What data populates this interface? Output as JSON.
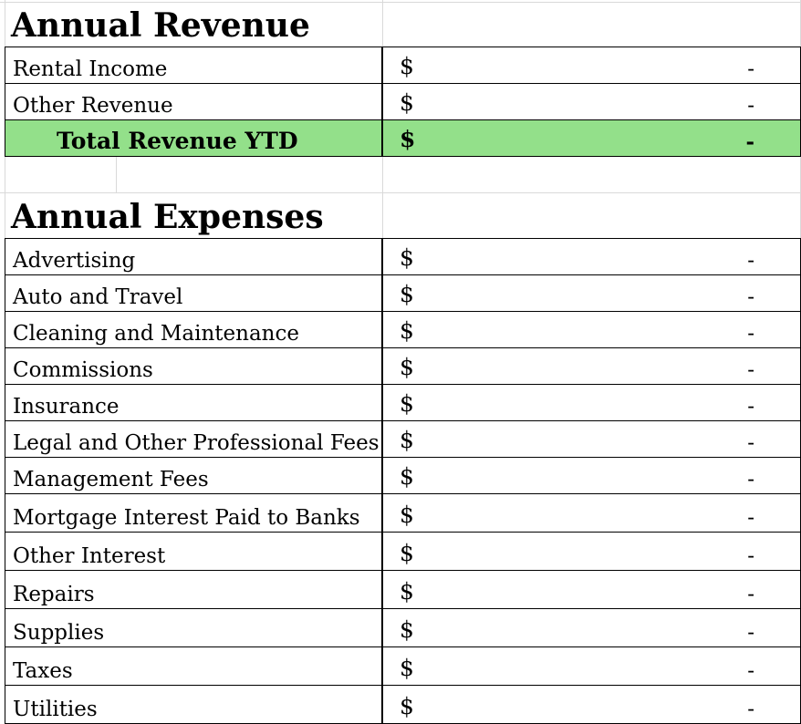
{
  "revenue": {
    "heading": "Annual Revenue",
    "rows": [
      {
        "label": "Rental Income",
        "currency": "$",
        "value": "-"
      },
      {
        "label": "Other Revenue",
        "currency": "$",
        "value": "-"
      }
    ],
    "total": {
      "label": "Total Revenue YTD",
      "currency": "$",
      "value": "-",
      "highlight_color": "#93e08a"
    }
  },
  "expenses": {
    "heading": "Annual Expenses",
    "rows": [
      {
        "label": "Advertising",
        "currency": "$",
        "value": "-"
      },
      {
        "label": "Auto and Travel",
        "currency": "$",
        "value": "-"
      },
      {
        "label": "Cleaning and Maintenance",
        "currency": "$",
        "value": "-"
      },
      {
        "label": "Commissions",
        "currency": "$",
        "value": "-"
      },
      {
        "label": "Insurance",
        "currency": "$",
        "value": "-"
      },
      {
        "label": "Legal and Other Professional Fees",
        "currency": "$",
        "value": "-"
      },
      {
        "label": "Management Fees",
        "currency": "$",
        "value": "-"
      },
      {
        "label": "Mortgage Interest Paid to Banks",
        "currency": "$",
        "value": "-"
      },
      {
        "label": "Other Interest",
        "currency": "$",
        "value": "-"
      },
      {
        "label": "Repairs",
        "currency": "$",
        "value": "-"
      },
      {
        "label": "Supplies",
        "currency": "$",
        "value": "-"
      },
      {
        "label": "Taxes",
        "currency": "$",
        "value": "-"
      },
      {
        "label": "Utilities",
        "currency": "$",
        "value": "-"
      }
    ]
  }
}
